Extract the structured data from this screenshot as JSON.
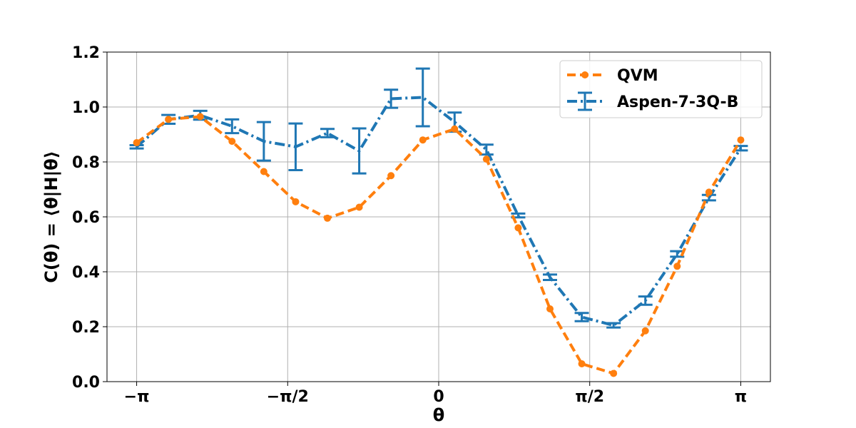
{
  "chart_data": {
    "type": "line",
    "xlabel": "θ",
    "ylabel": "C(θ) = ⟨θ|H|θ⟩",
    "xlim": [
      -3.45,
      3.45
    ],
    "ylim": [
      0,
      1.2
    ],
    "grid": true,
    "legend_position": "top-right",
    "x_ticks": [
      {
        "value": -3.14159,
        "label": "−π"
      },
      {
        "value": -1.5708,
        "label": "−π/2"
      },
      {
        "value": 0,
        "label": "0"
      },
      {
        "value": 1.5708,
        "label": "π/2"
      },
      {
        "value": 3.14159,
        "label": "π"
      }
    ],
    "y_ticks": [
      {
        "value": 0.0,
        "label": "0.0"
      },
      {
        "value": 0.2,
        "label": "0.2"
      },
      {
        "value": 0.4,
        "label": "0.4"
      },
      {
        "value": 0.6,
        "label": "0.6"
      },
      {
        "value": 0.8,
        "label": "0.8"
      },
      {
        "value": 1.0,
        "label": "1.0"
      },
      {
        "value": 1.2,
        "label": "1.2"
      }
    ],
    "series": [
      {
        "name": "QVM",
        "color": "#ff7f0e",
        "style": "dashed",
        "marker": "circle",
        "x": [
          -3.1416,
          -2.8109,
          -2.4802,
          -2.1495,
          -1.8188,
          -1.4881,
          -1.1574,
          -0.8267,
          -0.496,
          -0.1653,
          0.1653,
          0.496,
          0.8267,
          1.1574,
          1.4881,
          1.8188,
          2.1495,
          2.4802,
          2.8109,
          3.1416
        ],
        "y": [
          0.87,
          0.955,
          0.965,
          0.875,
          0.765,
          0.655,
          0.595,
          0.635,
          0.75,
          0.88,
          0.92,
          0.81,
          0.56,
          0.265,
          0.065,
          0.03,
          0.185,
          0.42,
          0.69,
          0.88
        ]
      },
      {
        "name": "Aspen-7-3Q-B",
        "color": "#1f77b4",
        "style": "dashdot",
        "marker": "errorbar",
        "x": [
          -3.1416,
          -2.8109,
          -2.4802,
          -2.1495,
          -1.8188,
          -1.4881,
          -1.1574,
          -0.8267,
          -0.496,
          -0.1653,
          0.1653,
          0.496,
          0.8267,
          1.1574,
          1.4881,
          1.8188,
          2.1495,
          2.4802,
          2.8109,
          3.1416
        ],
        "y": [
          0.855,
          0.955,
          0.97,
          0.93,
          0.875,
          0.855,
          0.905,
          0.84,
          1.03,
          1.035,
          0.945,
          0.845,
          0.605,
          0.38,
          0.235,
          0.205,
          0.295,
          0.465,
          0.67,
          0.85
        ],
        "yerr": [
          0.006,
          0.016,
          0.016,
          0.025,
          0.07,
          0.085,
          0.015,
          0.082,
          0.033,
          0.105,
          0.035,
          0.018,
          0.007,
          0.01,
          0.015,
          0.008,
          0.015,
          0.01,
          0.01,
          0.008
        ]
      }
    ]
  }
}
